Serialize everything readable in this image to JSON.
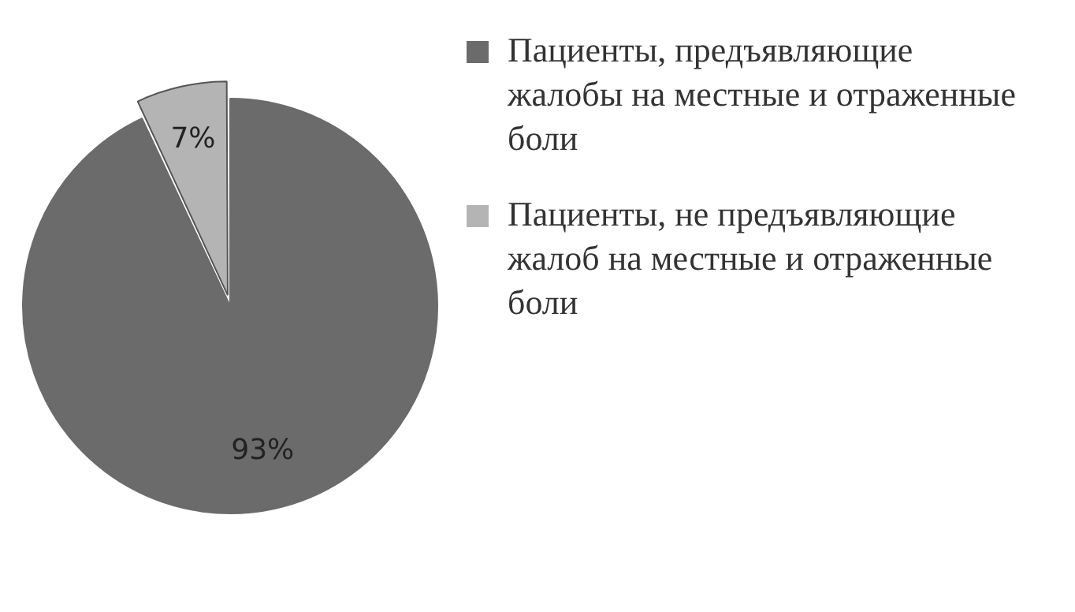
{
  "chart_data": {
    "type": "pie",
    "categories": [
      "Пациенты, предъявляющие жалобы на местные и отраженные боли",
      "Пациенты, не предъявляющие жалоб на местные и отраженные боли"
    ],
    "values": [
      93,
      7
    ],
    "colors": [
      "#6b6b6b",
      "#b4b4b4"
    ],
    "value_labels": [
      "93%",
      "7%"
    ],
    "legend": "right"
  }
}
